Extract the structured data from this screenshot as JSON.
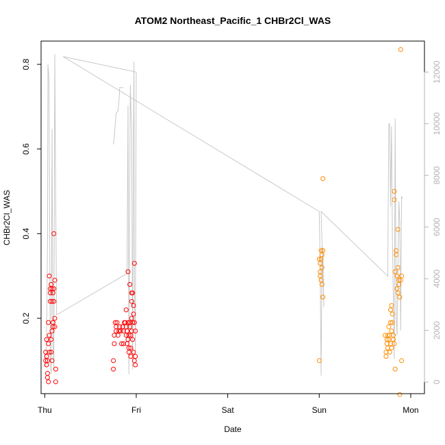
{
  "chart_data": {
    "type": "scatter",
    "title": "ATOM2 Northeast_Pacific_1 CHBr2Cl_WAS",
    "xlabel": "Date",
    "ylabel": "CHBr2Cl_WAS",
    "x_ticks": [
      {
        "value": 0,
        "label": "Thu"
      },
      {
        "value": 1,
        "label": "Fri"
      },
      {
        "value": 2,
        "label": "Sat"
      },
      {
        "value": 3,
        "label": "Sun"
      },
      {
        "value": 4,
        "label": "Mon"
      }
    ],
    "xlim": [
      -0.04,
      4.15
    ],
    "ylim": [
      0.022,
      0.855
    ],
    "y_ticks": [
      0.2,
      0.4,
      0.6,
      0.8
    ],
    "y2lim": [
      -450,
      13200
    ],
    "y2_ticks": [
      0,
      2000,
      4000,
      6000,
      8000,
      10000,
      12000
    ],
    "y2_color": "#b3b3b3",
    "grid": false,
    "series": [
      {
        "color": "#ff0000",
        "points": [
          [
            0.01,
            0.1
          ],
          [
            0.01,
            0.12
          ],
          [
            0.02,
            0.15
          ],
          [
            0.02,
            0.09
          ],
          [
            0.02,
            0.11
          ],
          [
            0.03,
            0.06
          ],
          [
            0.03,
            0.07
          ],
          [
            0.03,
            0.1
          ],
          [
            0.04,
            0.14
          ],
          [
            0.04,
            0.19
          ],
          [
            0.04,
            0.05
          ],
          [
            0.05,
            0.12
          ],
          [
            0.05,
            0.16
          ],
          [
            0.05,
            0.3
          ],
          [
            0.06,
            0.27
          ],
          [
            0.06,
            0.24
          ],
          [
            0.06,
            0.26
          ],
          [
            0.07,
            0.28
          ],
          [
            0.07,
            0.15
          ],
          [
            0.07,
            0.12
          ],
          [
            0.08,
            0.27
          ],
          [
            0.08,
            0.24
          ],
          [
            0.08,
            0.17
          ],
          [
            0.08,
            0.1
          ],
          [
            0.09,
            0.26
          ],
          [
            0.09,
            0.19
          ],
          [
            0.09,
            0.18
          ],
          [
            0.1,
            0.27
          ],
          [
            0.1,
            0.24
          ],
          [
            0.1,
            0.4
          ],
          [
            0.11,
            0.29
          ],
          [
            0.11,
            0.2
          ],
          [
            0.11,
            0.18
          ],
          [
            0.12,
            0.08
          ],
          [
            0.12,
            0.05
          ],
          [
            0.75,
            0.1
          ],
          [
            0.75,
            0.08
          ],
          [
            0.76,
            0.14
          ],
          [
            0.76,
            0.16
          ],
          [
            0.77,
            0.19
          ],
          [
            0.78,
            0.18
          ],
          [
            0.78,
            0.17
          ],
          [
            0.79,
            0.19
          ],
          [
            0.8,
            0.16
          ],
          [
            0.81,
            0.17
          ],
          [
            0.82,
            0.18
          ],
          [
            0.83,
            0.17
          ],
          [
            0.84,
            0.14
          ],
          [
            0.85,
            0.18
          ],
          [
            0.86,
            0.14
          ],
          [
            0.86,
            0.17
          ],
          [
            0.87,
            0.19
          ],
          [
            0.88,
            0.19
          ],
          [
            0.89,
            0.18
          ],
          [
            0.89,
            0.16
          ],
          [
            0.89,
            0.22
          ],
          [
            0.9,
            0.17
          ],
          [
            0.9,
            0.14
          ],
          [
            0.91,
            0.31
          ],
          [
            0.91,
            0.19
          ],
          [
            0.91,
            0.15
          ],
          [
            0.92,
            0.12
          ],
          [
            0.92,
            0.13
          ],
          [
            0.92,
            0.16
          ],
          [
            0.93,
            0.19
          ],
          [
            0.93,
            0.18
          ],
          [
            0.93,
            0.28
          ],
          [
            0.94,
            0.16
          ],
          [
            0.94,
            0.13
          ],
          [
            0.94,
            0.11
          ],
          [
            0.95,
            0.26
          ],
          [
            0.95,
            0.24
          ],
          [
            0.95,
            0.2
          ],
          [
            0.95,
            0.17
          ],
          [
            0.96,
            0.15
          ],
          [
            0.96,
            0.19
          ],
          [
            0.96,
            0.26
          ],
          [
            0.97,
            0.23
          ],
          [
            0.97,
            0.21
          ],
          [
            0.97,
            0.12
          ],
          [
            0.98,
            0.19
          ],
          [
            0.98,
            0.33
          ],
          [
            0.98,
            0.1
          ],
          [
            0.99,
            0.09
          ],
          [
            0.99,
            0.17
          ],
          [
            0.99,
            0.11
          ]
        ]
      },
      {
        "color": "#ff8c00",
        "points": [
          [
            3.0,
            0.1
          ],
          [
            3.0,
            0.34
          ],
          [
            3.01,
            0.31
          ],
          [
            3.01,
            0.33
          ],
          [
            3.01,
            0.3
          ],
          [
            3.02,
            0.29
          ],
          [
            3.02,
            0.34
          ],
          [
            3.02,
            0.36
          ],
          [
            3.03,
            0.32
          ],
          [
            3.03,
            0.35
          ],
          [
            3.03,
            0.28
          ],
          [
            3.04,
            0.53
          ],
          [
            3.04,
            0.36
          ],
          [
            3.04,
            0.25
          ],
          [
            3.72,
            0.16
          ],
          [
            3.73,
            0.12
          ],
          [
            3.73,
            0.11
          ],
          [
            3.74,
            0.15
          ],
          [
            3.74,
            0.14
          ],
          [
            3.75,
            0.13
          ],
          [
            3.75,
            0.16
          ],
          [
            3.76,
            0.18
          ],
          [
            3.76,
            0.15
          ],
          [
            3.77,
            0.12
          ],
          [
            3.77,
            0.16
          ],
          [
            3.78,
            0.22
          ],
          [
            3.78,
            0.19
          ],
          [
            3.78,
            0.14
          ],
          [
            3.79,
            0.17
          ],
          [
            3.79,
            0.23
          ],
          [
            3.79,
            0.13
          ],
          [
            3.8,
            0.21
          ],
          [
            3.8,
            0.19
          ],
          [
            3.81,
            0.16
          ],
          [
            3.81,
            0.15
          ],
          [
            3.82,
            0.14
          ],
          [
            3.82,
            0.5
          ],
          [
            3.82,
            0.48
          ],
          [
            3.83,
            0.08
          ],
          [
            3.83,
            0.31
          ],
          [
            3.84,
            0.36
          ],
          [
            3.84,
            0.35
          ],
          [
            3.85,
            0.3
          ],
          [
            3.85,
            0.27
          ],
          [
            3.86,
            0.41
          ],
          [
            3.86,
            0.26
          ],
          [
            3.86,
            0.32
          ],
          [
            3.87,
            0.29
          ],
          [
            3.87,
            0.28
          ],
          [
            3.88,
            0.25
          ],
          [
            3.88,
            0.02
          ],
          [
            3.89,
            0.835
          ],
          [
            3.89,
            0.29
          ],
          [
            3.9,
            0.3
          ],
          [
            3.9,
            0.1
          ]
        ]
      }
    ],
    "secondary_line": {
      "color": "#c8c8c8",
      "segments": [
        [
          [
            0.01,
            600
          ],
          [
            0.02,
            1600
          ],
          [
            0.03,
            5500
          ],
          [
            0.035,
            12300
          ],
          [
            0.045,
            11800
          ],
          [
            0.05,
            9000
          ],
          [
            0.06,
            900
          ],
          [
            0.07,
            300
          ],
          [
            0.075,
            5000
          ],
          [
            0.08,
            9800
          ],
          [
            0.085,
            6000
          ],
          [
            0.09,
            1400
          ],
          [
            0.1,
            500
          ],
          [
            0.11,
            12700
          ],
          [
            0.12,
            7000
          ],
          [
            0.13,
            2600
          ],
          [
            0.9,
            4200
          ],
          [
            0.91,
            10700
          ],
          [
            0.92,
            300
          ],
          [
            0.935,
            11500
          ],
          [
            0.95,
            9700
          ],
          [
            0.96,
            500
          ],
          [
            0.97,
            10000
          ],
          [
            0.975,
            12400
          ],
          [
            0.98,
            4000
          ],
          [
            0.99,
            1200
          ],
          [
            1.0,
            12000
          ],
          [
            0.2,
            12600
          ],
          [
            3.0,
            6600
          ],
          [
            3.01,
            4500
          ],
          [
            3.02,
            250
          ],
          [
            3.03,
            4500
          ],
          [
            3.04,
            5200
          ],
          [
            3.05,
            2900
          ],
          [
            3.02,
            6600
          ],
          [
            3.75,
            4100
          ],
          [
            3.75,
            4700
          ],
          [
            3.76,
            10000
          ],
          [
            3.77,
            10000
          ],
          [
            3.78,
            6800
          ],
          [
            3.79,
            9900
          ],
          [
            3.8,
            5500
          ],
          [
            3.82,
            900
          ],
          [
            3.83,
            10200
          ],
          [
            3.84,
            2500
          ],
          [
            3.85,
            1800
          ],
          [
            3.86,
            4400
          ],
          [
            3.87,
            7000
          ],
          [
            3.88,
            6200
          ],
          [
            3.89,
            2000
          ],
          [
            3.9,
            7200
          ],
          [
            3.91,
            7100
          ]
        ],
        [
          [
            0.75,
            9200
          ],
          [
            0.76,
            9500
          ],
          [
            0.78,
            10400
          ],
          [
            0.8,
            10500
          ],
          [
            0.81,
            10800
          ],
          [
            0.82,
            11400
          ],
          [
            0.86,
            11400
          ]
        ]
      ]
    }
  }
}
